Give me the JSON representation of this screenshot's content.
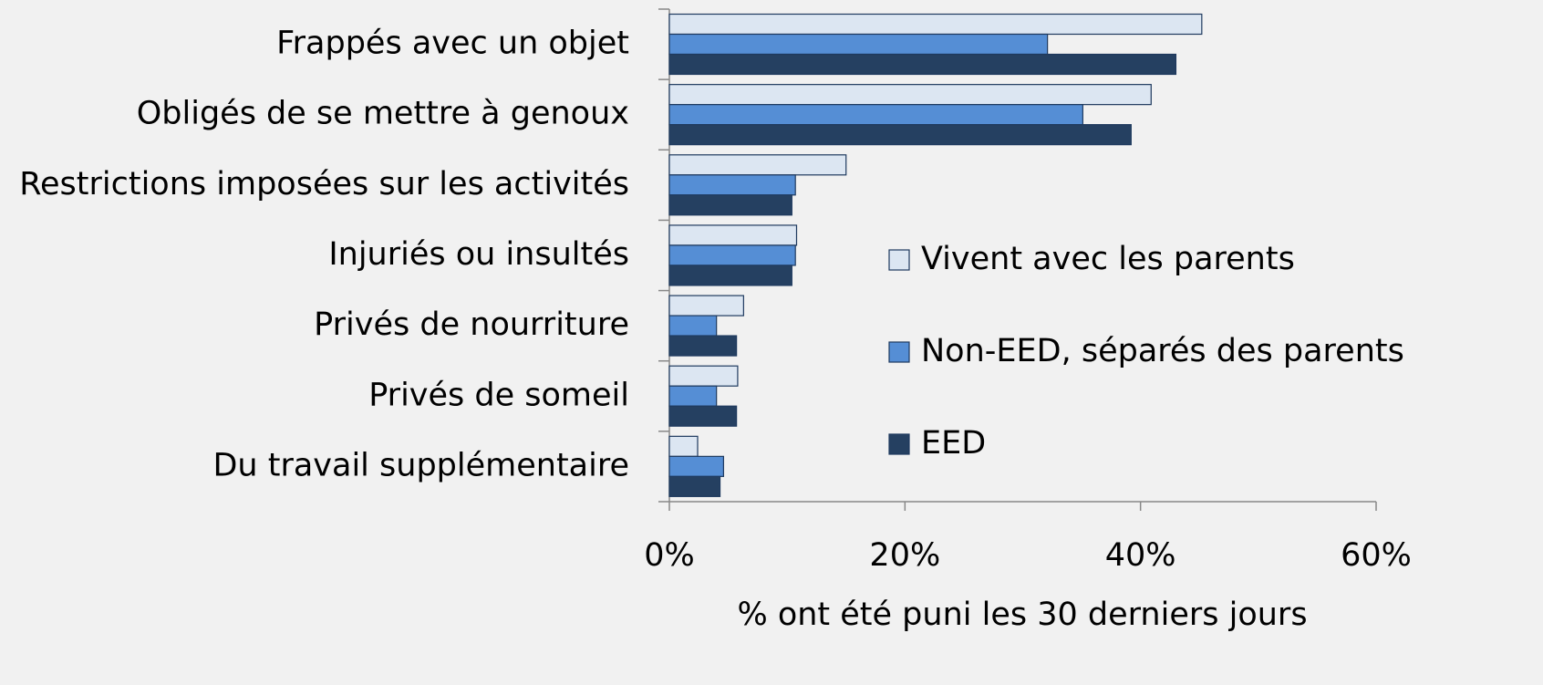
{
  "chart_data": {
    "type": "hbar",
    "x_label": "% ont été puni les 30 derniers jours",
    "categories": [
      "Frappés avec un objet",
      "Obligés de se mettre à genoux",
      "Restrictions imposées sur les activités",
      "Injuriés ou insultés",
      "Privés de nourriture",
      "Privés de someil",
      "Du travail supplémentaire"
    ],
    "series": [
      {
        "name": "Vivent avec les parents",
        "color": "#dce6f2",
        "values": [
          45.2,
          40.9,
          15.0,
          10.8,
          6.3,
          5.8,
          2.4
        ]
      },
      {
        "name": "Non-EED, séparés des parents",
        "color": "#558ed5",
        "values": [
          32.1,
          35.1,
          10.7,
          10.7,
          4.0,
          4.0,
          4.6
        ]
      },
      {
        "name": "EED",
        "color": "#254061",
        "values": [
          43.0,
          39.2,
          10.4,
          10.4,
          5.7,
          5.7,
          4.3
        ]
      }
    ],
    "xlim": [
      0,
      60
    ],
    "xticks": [
      {
        "value": 0,
        "label": "0%"
      },
      {
        "value": 20,
        "label": "20%"
      },
      {
        "value": 40,
        "label": "40%"
      },
      {
        "value": 60,
        "label": "60%"
      }
    ]
  }
}
